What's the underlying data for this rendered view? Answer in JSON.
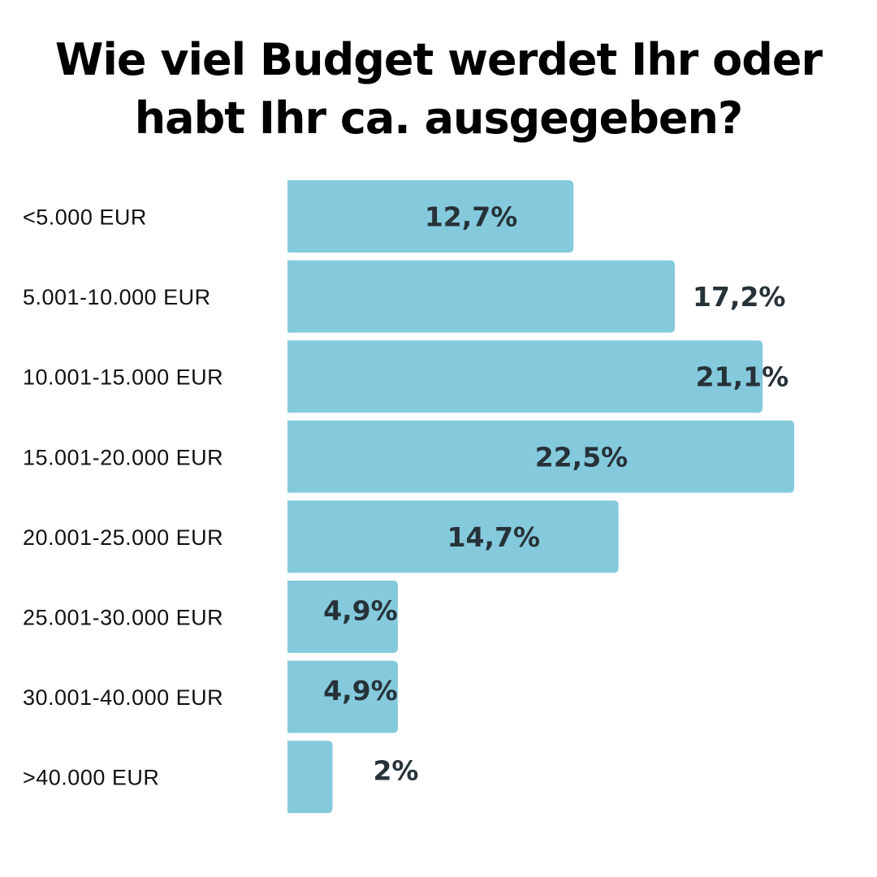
{
  "chart_data": {
    "type": "bar",
    "orientation": "horizontal",
    "title": [
      "Wie viel Budget werdet Ihr oder",
      "habt Ihr ca. ausgegeben?"
    ],
    "categories": [
      "<5.000 EUR",
      "5.001-10.000 EUR",
      "10.001-15.000 EUR",
      "15.001-20.000 EUR",
      "20.001-25.000 EUR",
      "25.001-30.000 EUR",
      "30.001-40.000 EUR",
      ">40.000 EUR"
    ],
    "values": [
      12.7,
      17.2,
      21.1,
      22.5,
      14.7,
      4.9,
      4.9,
      2
    ],
    "data_labels": [
      "12,7%",
      "17,2%",
      "21,1%",
      "22,5%",
      "14,7%",
      "4,9%",
      "4,9%",
      "2%"
    ],
    "label_position": [
      "inside",
      "outside",
      "inside-end",
      "inside",
      "inside",
      "inside",
      "inside",
      "outside"
    ],
    "unit": "%",
    "xlabel": "",
    "ylabel": "",
    "xlim": [
      0,
      22.5
    ],
    "grid": false,
    "legend": "none",
    "colors": {
      "bar": "#85C9DC",
      "label": "#263238",
      "category": "#111111",
      "title": "#000000"
    }
  }
}
